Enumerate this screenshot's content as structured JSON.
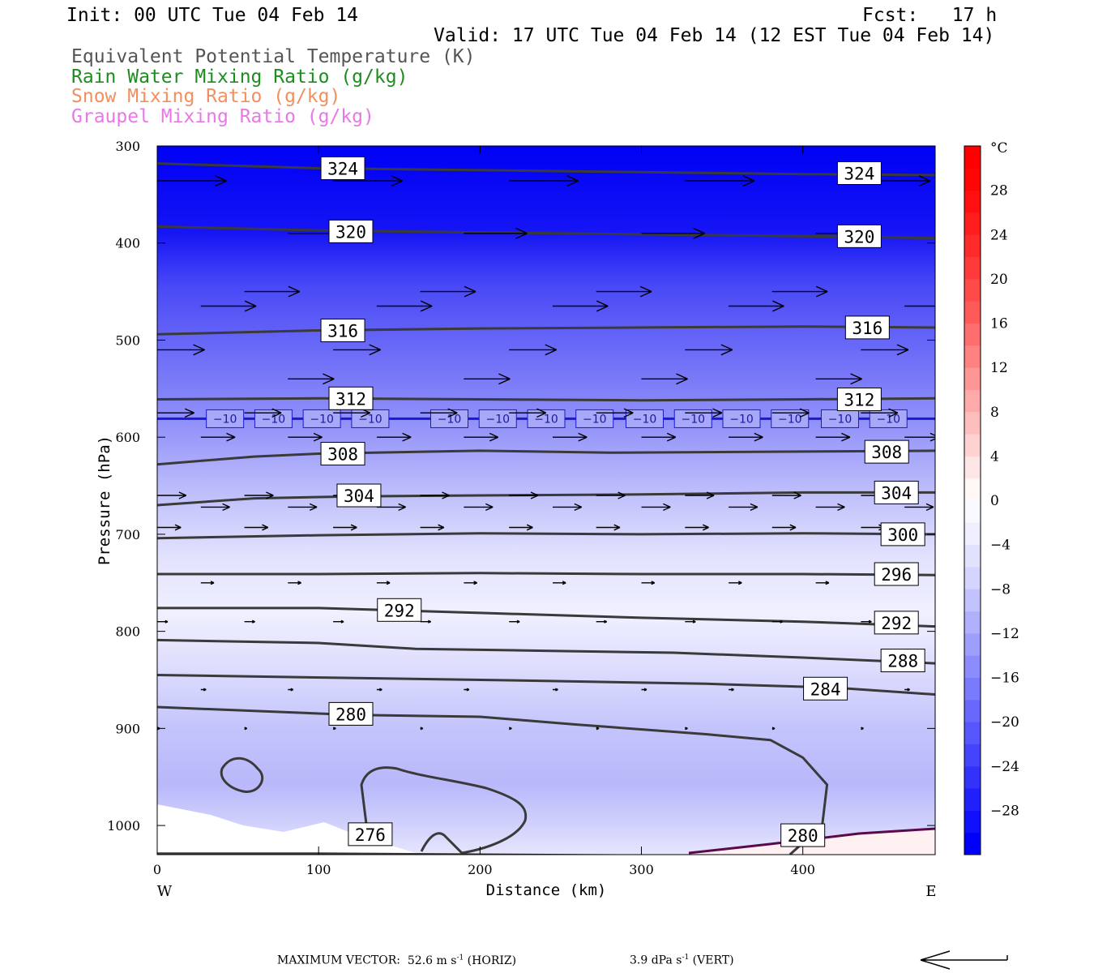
{
  "header": {
    "init": "Init: 00 UTC Tue 04 Feb 14",
    "fcst": "Fcst:   17 h",
    "valid": "Valid: 17 UTC Tue 04 Feb 14 (12 EST Tue 04 Feb 14)",
    "fields": [
      {
        "text": "Equivalent Potential Temperature (K)",
        "color": "#555555"
      },
      {
        "text": "Rain Water Mixing Ratio (g/kg)",
        "color": "#1e8c1e"
      },
      {
        "text": "Snow Mixing Ratio (g/kg)",
        "color": "#f09060"
      },
      {
        "text": "Graupel Mixing Ratio (g/kg)",
        "color": "#e878e8"
      }
    ]
  },
  "footer": {
    "max_vector_label": "MAXIMUM VECTOR:",
    "horiz_prefix": "52.6 m s",
    "horiz_suffix": " (HORIZ)",
    "vert_prefix": "3.9 dPa s",
    "vert_suffix": " (VERT)",
    "exponent": "-1"
  },
  "chart_data": {
    "type": "cross-section",
    "xlabel": "Distance (km)",
    "ylabel": "Pressure (hPa)",
    "x_ticks": [
      0,
      100,
      200,
      300,
      400
    ],
    "y_ticks": [
      300,
      400,
      500,
      600,
      700,
      800,
      900,
      1000
    ],
    "xlim": [
      0,
      482
    ],
    "ylim": [
      1030,
      300
    ],
    "x_end_labels": {
      "left": "W",
      "right": "E"
    },
    "colorbar": {
      "unit": "°C",
      "range": [
        -32,
        32
      ],
      "tick_values": [
        28,
        24,
        20,
        16,
        12,
        8,
        4,
        0,
        -4,
        -8,
        -12,
        -16,
        -20,
        -24,
        -28
      ],
      "tick_labels": [
        "28",
        "24",
        "20",
        "16",
        "12",
        "8",
        "4",
        "0",
        "−4",
        "−8",
        "−12",
        "−16",
        "−20",
        "−24",
        "−28"
      ],
      "colors": [
        "#0000fa",
        "#1010fa",
        "#2020fb",
        "#3232fb",
        "#4444fb",
        "#5656fc",
        "#6868fc",
        "#7a7afc",
        "#8c8cfd",
        "#9e9efd",
        "#b0b0fd",
        "#c2c2fe",
        "#d4d4fe",
        "#e2e2fe",
        "#eeeeff",
        "#f8f8ff",
        "#fff6f6",
        "#ffe6e6",
        "#ffd2d2",
        "#ffbebe",
        "#ffaaaa",
        "#ff9696",
        "#ff8282",
        "#ff6e6e",
        "#ff5a5a",
        "#ff4a4a",
        "#ff3a3a",
        "#ff2a2a",
        "#ff1c1c",
        "#ff1010",
        "#ff0606",
        "#ff0000"
      ]
    },
    "theta_e_contours": [
      {
        "value": 324,
        "label": "324",
        "points": [
          [
            0,
            318
          ],
          [
            100,
            323
          ],
          [
            200,
            325
          ],
          [
            300,
            327
          ],
          [
            400,
            329
          ],
          [
            482,
            330
          ]
        ],
        "label_at": [
          [
            115,
            323
          ],
          [
            435,
            328
          ]
        ]
      },
      {
        "value": 320,
        "label": "320",
        "points": [
          [
            0,
            383
          ],
          [
            100,
            387
          ],
          [
            200,
            389
          ],
          [
            300,
            391
          ],
          [
            400,
            393
          ],
          [
            482,
            395
          ]
        ],
        "label_at": [
          [
            120,
            388
          ],
          [
            435,
            393
          ]
        ]
      },
      {
        "value": 316,
        "label": "316",
        "points": [
          [
            0,
            494
          ],
          [
            100,
            490
          ],
          [
            200,
            488
          ],
          [
            300,
            487
          ],
          [
            400,
            486
          ],
          [
            482,
            487
          ]
        ],
        "label_at": [
          [
            115,
            490
          ],
          [
            440,
            487
          ]
        ]
      },
      {
        "value": 312,
        "label": "312",
        "points": [
          [
            0,
            561
          ],
          [
            100,
            560
          ],
          [
            200,
            561
          ],
          [
            300,
            562
          ],
          [
            400,
            561
          ],
          [
            482,
            560
          ]
        ],
        "label_at": [
          [
            120,
            560
          ],
          [
            435,
            561
          ]
        ]
      },
      {
        "value": 308,
        "label": "308",
        "points": [
          [
            0,
            628
          ],
          [
            60,
            620
          ],
          [
            100,
            617
          ],
          [
            200,
            614
          ],
          [
            280,
            616
          ],
          [
            380,
            615
          ],
          [
            482,
            614
          ]
        ],
        "label_at": [
          [
            115,
            617
          ],
          [
            452,
            615
          ]
        ]
      },
      {
        "value": 304,
        "label": "304",
        "points": [
          [
            0,
            670
          ],
          [
            60,
            663
          ],
          [
            120,
            661
          ],
          [
            200,
            660
          ],
          [
            300,
            659
          ],
          [
            400,
            657
          ],
          [
            482,
            657
          ]
        ],
        "label_at": [
          [
            125,
            660
          ],
          [
            458,
            657
          ]
        ]
      },
      {
        "value": 300,
        "label": "300",
        "points": [
          [
            0,
            704
          ],
          [
            100,
            701
          ],
          [
            200,
            699
          ],
          [
            300,
            700
          ],
          [
            400,
            699
          ],
          [
            482,
            700
          ]
        ],
        "label_at": [
          [
            462,
            700
          ]
        ]
      },
      {
        "value": 296,
        "label": "296",
        "points": [
          [
            0,
            741
          ],
          [
            100,
            741
          ],
          [
            200,
            740
          ],
          [
            300,
            741
          ],
          [
            400,
            741
          ],
          [
            482,
            742
          ]
        ],
        "label_at": [
          [
            458,
            741
          ]
        ]
      },
      {
        "value": 292,
        "label": "292",
        "points": [
          [
            0,
            776
          ],
          [
            100,
            776
          ],
          [
            200,
            781
          ],
          [
            300,
            786
          ],
          [
            400,
            790
          ],
          [
            482,
            795
          ]
        ],
        "label_at": [
          [
            150,
            778
          ],
          [
            458,
            791
          ]
        ]
      },
      {
        "value": 288,
        "label": "288",
        "points": [
          [
            0,
            809
          ],
          [
            100,
            812
          ],
          [
            160,
            818
          ],
          [
            240,
            820
          ],
          [
            320,
            822
          ],
          [
            400,
            827
          ],
          [
            482,
            833
          ]
        ],
        "label_at": [
          [
            462,
            830
          ]
        ]
      },
      {
        "value": 284,
        "label": "284",
        "points": [
          [
            0,
            845
          ],
          [
            120,
            848
          ],
          [
            240,
            851
          ],
          [
            340,
            854
          ],
          [
            420,
            858
          ],
          [
            482,
            865
          ]
        ],
        "label_at": [
          [
            414,
            859
          ]
        ]
      },
      {
        "value": 280,
        "label": "280",
        "points": [
          [
            0,
            878
          ],
          [
            120,
            886
          ],
          [
            200,
            888
          ],
          [
            260,
            896
          ],
          [
            340,
            906
          ],
          [
            380,
            912
          ],
          [
            400,
            930
          ],
          [
            415,
            958
          ],
          [
            412,
            1000
          ],
          [
            392,
            1030
          ]
        ],
        "label_at": [
          [
            120,
            885
          ],
          [
            400,
            1010
          ]
        ]
      },
      {
        "value": 276,
        "label": "276",
        "points": [
          [
            0,
            1029
          ],
          [
            100,
            1029
          ],
          [
            200,
            1030
          ],
          [
            300,
            1031
          ],
          [
            400,
            1031
          ],
          [
            482,
            1031
          ]
        ],
        "label_at": [
          [
            132,
            1009
          ]
        ]
      }
    ],
    "isotherm": {
      "value": -10,
      "label": "−10",
      "pressure": 581,
      "label_x": [
        42,
        72,
        102,
        132,
        181,
        211,
        241,
        271,
        302,
        332,
        362,
        392,
        423,
        453
      ]
    },
    "wind_levels": [
      {
        "p": 336,
        "u": 52.6
      },
      {
        "p": 390,
        "u": 48
      },
      {
        "p": 450,
        "u": 42
      },
      {
        "p": 465,
        "u": 42
      },
      {
        "p": 510,
        "u": 36
      },
      {
        "p": 540,
        "u": 35
      },
      {
        "p": 575,
        "u": 28
      },
      {
        "p": 600,
        "u": 26
      },
      {
        "p": 660,
        "u": 22
      },
      {
        "p": 672,
        "u": 22
      },
      {
        "p": 693,
        "u": 18
      },
      {
        "p": 750,
        "u": 10
      },
      {
        "p": 790,
        "u": 8
      },
      {
        "p": 860,
        "u": 4
      },
      {
        "p": 900,
        "u": 2
      }
    ]
  }
}
